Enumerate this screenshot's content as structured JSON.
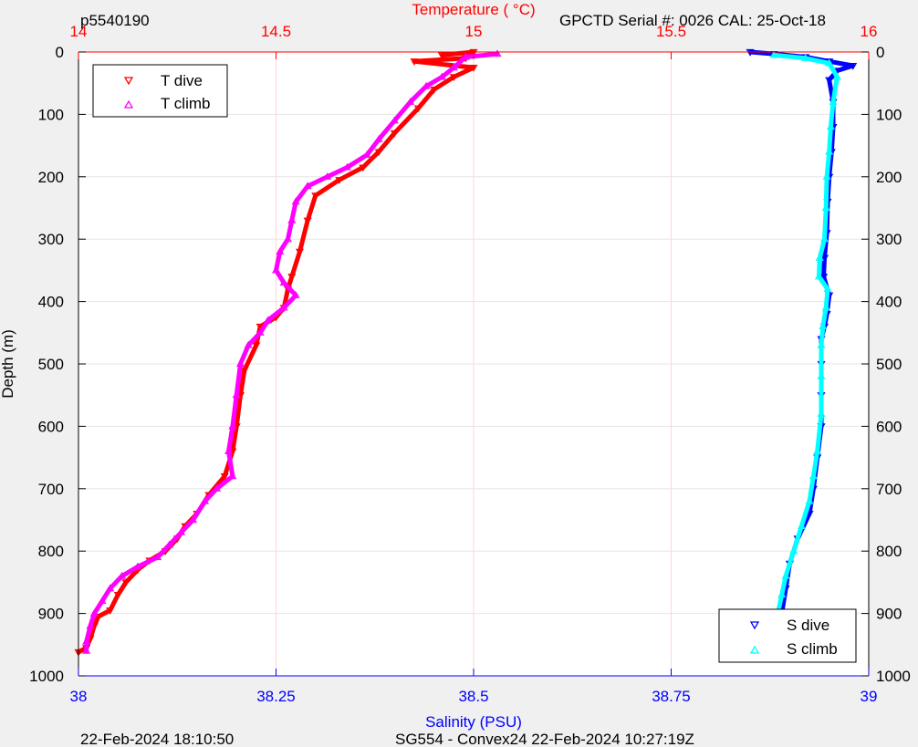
{
  "header": {
    "profile_id": "p5540190",
    "serial_info": "GPCTD Serial #: 0026 CAL: 25-Oct-18",
    "top_axis_label": "Temperature (    °C)"
  },
  "footer": {
    "generated_time": "22-Feb-2024 18:10:50",
    "mission_info": "SG554 - Convex24 22-Feb-2024 10:27:19Z"
  },
  "colors": {
    "temperature_axis": "#ff0000",
    "salinity_axis": "#0000ff",
    "t_dive": "#ff0000",
    "t_climb": "#ff00ff",
    "s_dive": "#0000ff",
    "s_climb": "#00ffff",
    "grid": "#e6e6e6",
    "grid_temp": "#ffd6d6",
    "background": "#f0f0f0"
  },
  "chart_data": {
    "type": "scatter",
    "ylabel": "Depth (m)",
    "xlabel_bottom": "Salinity (PSU)",
    "xlabel_top": "Temperature (    °C)",
    "ylim": [
      0,
      1000
    ],
    "y_reversed": true,
    "y_ticks": [
      0,
      100,
      200,
      300,
      400,
      500,
      600,
      700,
      800,
      900,
      1000
    ],
    "temperature_axis": {
      "range": [
        14,
        16
      ],
      "ticks": [
        14,
        14.5,
        15,
        15.5,
        16
      ],
      "tick_labels": [
        "14",
        "14.5",
        "15",
        "15.5",
        "16"
      ]
    },
    "salinity_axis": {
      "range": [
        38,
        39
      ],
      "ticks": [
        38,
        38.25,
        38.5,
        38.75,
        39
      ],
      "tick_labels": [
        "38",
        "38.25",
        "38.5",
        "38.75",
        "39"
      ]
    },
    "grid": true,
    "legend_temperature": {
      "position": "top-left",
      "entries": [
        "T dive",
        "T climb"
      ]
    },
    "legend_salinity": {
      "position": "bottom-right",
      "entries": [
        "S dive",
        "S climb"
      ]
    },
    "series": [
      {
        "name": "T dive",
        "axis": "temperature",
        "marker": "triangle-down",
        "points": [
          [
            14.92,
            5
          ],
          [
            15.0,
            0
          ],
          [
            14.98,
            10
          ],
          [
            14.85,
            15
          ],
          [
            15.0,
            25
          ],
          [
            14.95,
            40
          ],
          [
            14.9,
            60
          ],
          [
            14.86,
            90
          ],
          [
            14.8,
            130
          ],
          [
            14.76,
            160
          ],
          [
            14.72,
            185
          ],
          [
            14.66,
            205
          ],
          [
            14.6,
            230
          ],
          [
            14.58,
            270
          ],
          [
            14.56,
            320
          ],
          [
            14.54,
            360
          ],
          [
            14.53,
            380
          ],
          [
            14.52,
            410
          ],
          [
            14.5,
            425
          ],
          [
            14.46,
            440
          ],
          [
            14.45,
            470
          ],
          [
            14.42,
            510
          ],
          [
            14.41,
            550
          ],
          [
            14.4,
            600
          ],
          [
            14.39,
            640
          ],
          [
            14.37,
            680
          ],
          [
            14.33,
            710
          ],
          [
            14.3,
            740
          ],
          [
            14.27,
            760
          ],
          [
            14.25,
            780
          ],
          [
            14.22,
            800
          ],
          [
            14.18,
            815
          ],
          [
            14.15,
            830
          ],
          [
            14.12,
            850
          ],
          [
            14.1,
            870
          ],
          [
            14.08,
            895
          ],
          [
            14.05,
            905
          ],
          [
            14.04,
            920
          ],
          [
            14.03,
            940
          ],
          [
            14.02,
            955
          ],
          [
            14.0,
            962
          ]
        ]
      },
      {
        "name": "T climb",
        "axis": "temperature",
        "marker": "triangle-up",
        "points": [
          [
            15.06,
            3
          ],
          [
            14.98,
            8
          ],
          [
            14.95,
            25
          ],
          [
            14.92,
            40
          ],
          [
            14.88,
            55
          ],
          [
            14.84,
            80
          ],
          [
            14.8,
            110
          ],
          [
            14.76,
            140
          ],
          [
            14.73,
            165
          ],
          [
            14.68,
            185
          ],
          [
            14.63,
            200
          ],
          [
            14.58,
            215
          ],
          [
            14.55,
            240
          ],
          [
            14.54,
            270
          ],
          [
            14.53,
            300
          ],
          [
            14.51,
            320
          ],
          [
            14.5,
            350
          ],
          [
            14.52,
            370
          ],
          [
            14.55,
            390
          ],
          [
            14.52,
            410
          ],
          [
            14.48,
            430
          ],
          [
            14.46,
            450
          ],
          [
            14.43,
            470
          ],
          [
            14.41,
            500
          ],
          [
            14.4,
            550
          ],
          [
            14.39,
            600
          ],
          [
            14.38,
            640
          ],
          [
            14.39,
            680
          ],
          [
            14.35,
            700
          ],
          [
            14.32,
            720
          ],
          [
            14.29,
            750
          ],
          [
            14.26,
            770
          ],
          [
            14.23,
            790
          ],
          [
            14.2,
            810
          ],
          [
            14.15,
            825
          ],
          [
            14.11,
            840
          ],
          [
            14.08,
            860
          ],
          [
            14.06,
            880
          ],
          [
            14.04,
            900
          ],
          [
            14.03,
            920
          ],
          [
            14.02,
            945
          ],
          [
            14.02,
            960
          ]
        ]
      },
      {
        "name": "S dive",
        "axis": "salinity",
        "marker": "triangle-down",
        "points": [
          [
            38.85,
            0
          ],
          [
            38.88,
            3
          ],
          [
            38.92,
            8
          ],
          [
            38.95,
            15
          ],
          [
            38.98,
            22
          ],
          [
            38.96,
            30
          ],
          [
            38.95,
            45
          ],
          [
            38.955,
            80
          ],
          [
            38.955,
            120
          ],
          [
            38.953,
            160
          ],
          [
            38.95,
            200
          ],
          [
            38.948,
            240
          ],
          [
            38.947,
            290
          ],
          [
            38.944,
            330
          ],
          [
            38.943,
            360
          ],
          [
            38.95,
            390
          ],
          [
            38.947,
            420
          ],
          [
            38.944,
            440
          ],
          [
            38.94,
            460
          ],
          [
            38.94,
            500
          ],
          [
            38.94,
            550
          ],
          [
            38.94,
            600
          ],
          [
            38.935,
            650
          ],
          [
            38.93,
            700
          ],
          [
            38.925,
            740
          ],
          [
            38.91,
            780
          ],
          [
            38.9,
            820
          ],
          [
            38.895,
            860
          ],
          [
            38.89,
            900
          ],
          [
            38.885,
            930
          ],
          [
            38.883,
            960
          ]
        ]
      },
      {
        "name": "S climb",
        "axis": "salinity",
        "marker": "triangle-up",
        "points": [
          [
            38.88,
            5
          ],
          [
            38.92,
            10
          ],
          [
            38.95,
            18
          ],
          [
            38.96,
            40
          ],
          [
            38.955,
            80
          ],
          [
            38.952,
            120
          ],
          [
            38.95,
            160
          ],
          [
            38.947,
            200
          ],
          [
            38.946,
            250
          ],
          [
            38.944,
            300
          ],
          [
            38.938,
            330
          ],
          [
            38.937,
            360
          ],
          [
            38.948,
            380
          ],
          [
            38.946,
            410
          ],
          [
            38.942,
            440
          ],
          [
            38.94,
            470
          ],
          [
            38.94,
            520
          ],
          [
            38.94,
            580
          ],
          [
            38.935,
            640
          ],
          [
            38.93,
            680
          ],
          [
            38.925,
            720
          ],
          [
            38.915,
            760
          ],
          [
            38.905,
            800
          ],
          [
            38.895,
            840
          ],
          [
            38.89,
            870
          ],
          [
            38.885,
            900
          ],
          [
            38.882,
            930
          ],
          [
            38.88,
            960
          ]
        ]
      }
    ]
  }
}
